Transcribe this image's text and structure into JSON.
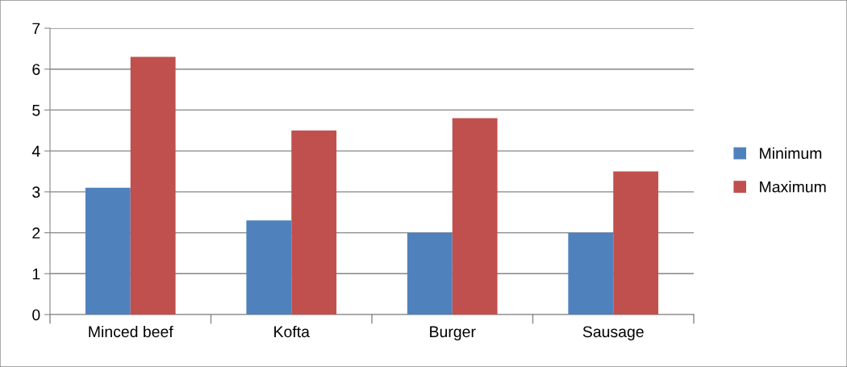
{
  "chart_data": {
    "type": "bar",
    "categories": [
      "Minced beef",
      "Kofta",
      "Burger",
      "Sausage"
    ],
    "series": [
      {
        "name": "Minimum",
        "color": "#4f81bd",
        "values": [
          3.1,
          2.3,
          2.0,
          2.0
        ]
      },
      {
        "name": "Maximum",
        "color": "#c0504d",
        "values": [
          6.3,
          4.5,
          4.8,
          3.5
        ]
      }
    ],
    "ylim": [
      0,
      7
    ],
    "yticks": [
      0,
      1,
      2,
      3,
      4,
      5,
      6,
      7
    ],
    "grid": "y",
    "legend": "right"
  }
}
